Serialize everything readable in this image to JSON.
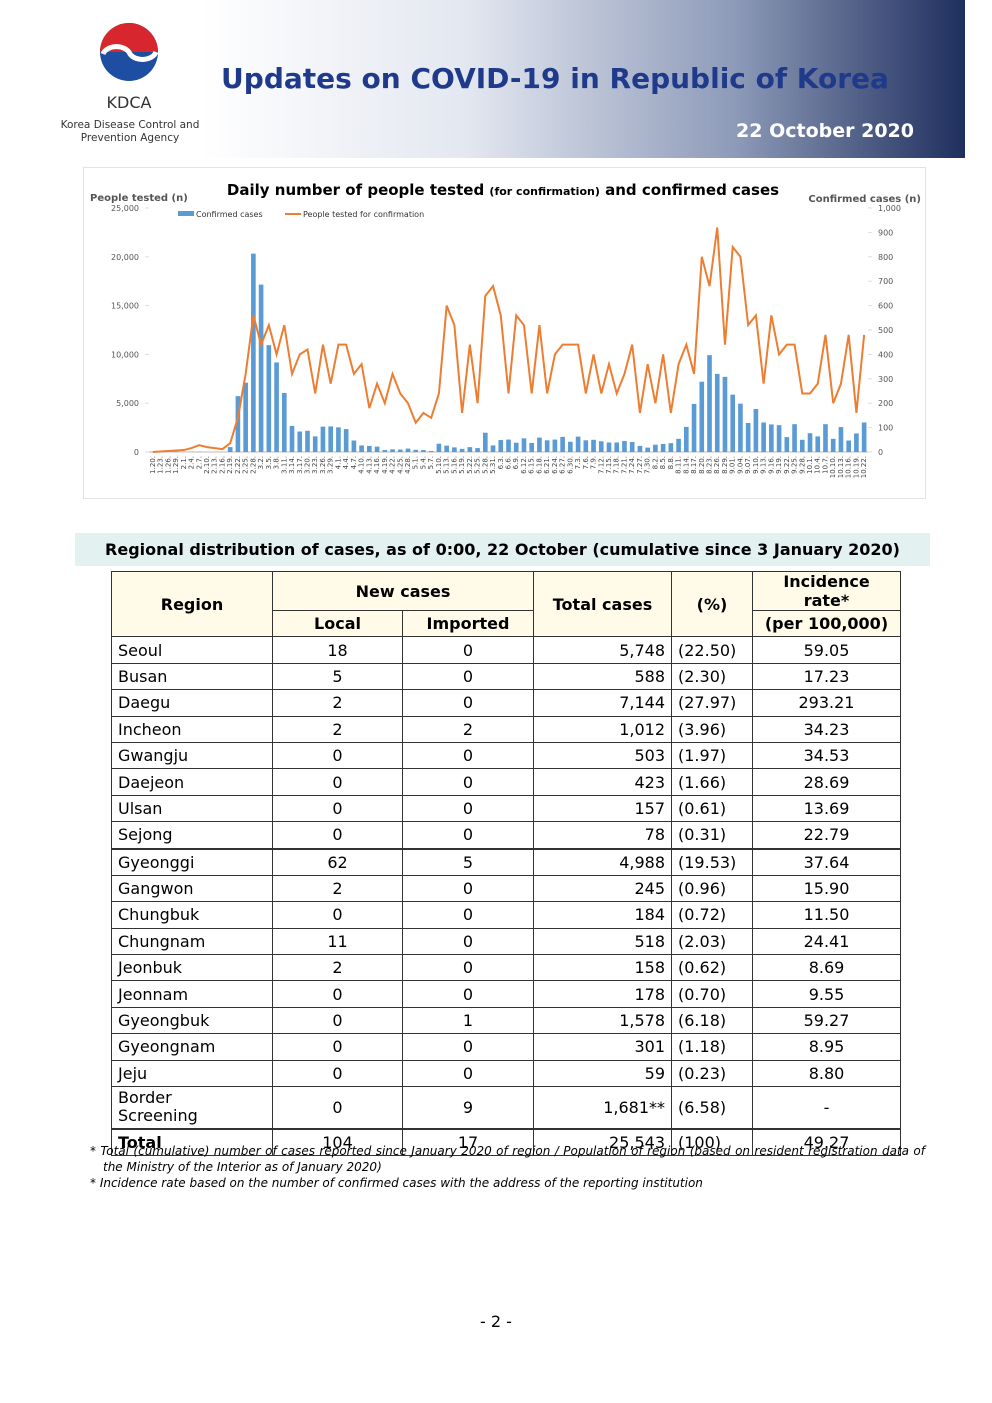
{
  "header": {
    "org": "KDCA",
    "org_full": [
      "Korea Disease Control and",
      "Prevention Agency"
    ],
    "title": "Updates on COVID-19 in Republic of Korea",
    "date": "22 October 2020"
  },
  "chart_data": {
    "type": "combo",
    "title": "Daily number of people tested",
    "title_small": "(for confirmation)",
    "title_end": "and confirmed cases",
    "y_label": "People tested (n)",
    "y2_label": "Confirmed cases (n)",
    "categories": [
      "1.20.",
      "1.23.",
      "1.26.",
      "1.29.",
      "2.1.",
      "2.4.",
      "2.7.",
      "2.10.",
      "2.13.",
      "2.16.",
      "2.19.",
      "2.22.",
      "2.25.",
      "2.28.",
      "3.2.",
      "3.5.",
      "3.8.",
      "3.11.",
      "3.14.",
      "3.17.",
      "3.20.",
      "3.23.",
      "3.26.",
      "3.29.",
      "4.1.",
      "4.4.",
      "4.7.",
      "4.10.",
      "4.13.",
      "4.16.",
      "4.19.",
      "4.22.",
      "4.25.",
      "4.28.",
      "5.1.",
      "5.4.",
      "5.7.",
      "5.10.",
      "5.13.",
      "5.16.",
      "5.19.",
      "5.22.",
      "5.25.",
      "5.28.",
      "5.31.",
      "6.3.",
      "6.6.",
      "6.9.",
      "6.12.",
      "6.15.",
      "6.18.",
      "6.21.",
      "6.24.",
      "6.27.",
      "6.30.",
      "7.3.",
      "7.6.",
      "7.9.",
      "7.12.",
      "7.15.",
      "7.18.",
      "7.21.",
      "7.24.",
      "7.27.",
      "7.30.",
      "8.2.",
      "8.5.",
      "8.8.",
      "8.11.",
      "8.14.",
      "8.17.",
      "8.20.",
      "8.23.",
      "8.26.",
      "8.29.",
      "9.01.",
      "9.04.",
      "9.07.",
      "9.10.",
      "9.13.",
      "9.16.",
      "9.19.",
      "9.22.",
      "9.25.",
      "9.28.",
      "10.1.",
      "10.4.",
      "10.7.",
      "10.10.",
      "10.13.",
      "10.16.",
      "10.19.",
      "10.22."
    ],
    "series": [
      {
        "name": "Confirmed cases",
        "kind": "bar",
        "axis": "y2",
        "color": "#5b9bd5",
        "values": [
          1,
          0,
          1,
          1,
          1,
          1,
          1,
          0,
          0,
          0,
          20,
          229,
          284,
          813,
          686,
          438,
          367,
          242,
          107,
          84,
          87,
          64,
          104,
          105,
          101,
          94,
          47,
          27,
          25,
          22,
          8,
          11,
          10,
          14,
          9,
          8,
          4,
          34,
          26,
          19,
          13,
          20,
          16,
          79,
          27,
          49,
          51,
          38,
          56,
          37,
          59,
          48,
          51,
          62,
          42,
          63,
          48,
          50,
          44,
          39,
          39,
          45,
          41,
          25,
          18,
          30,
          33,
          36,
          54,
          103,
          197,
          288,
          397,
          320,
          308,
          235,
          198,
          119,
          176,
          121,
          113,
          110,
          61,
          114,
          50,
          77,
          64,
          114,
          54,
          102,
          47,
          76,
          121
        ]
      },
      {
        "name": "People tested for confirmation",
        "kind": "line",
        "color": "#ed7d31",
        "values": [
          0,
          50,
          100,
          150,
          200,
          400,
          700,
          500,
          400,
          300,
          900,
          3500,
          8000,
          14000,
          11000,
          13000,
          10000,
          13000,
          8000,
          10000,
          10500,
          6000,
          11000,
          7000,
          11000,
          11000,
          8000,
          9000,
          4500,
          7000,
          5000,
          8000,
          6000,
          5000,
          3000,
          4000,
          3500,
          6000,
          15000,
          13000,
          4000,
          11000,
          5000,
          16000,
          17000,
          14000,
          6000,
          14000,
          13000,
          6000,
          13000,
          6000,
          10000,
          11000,
          11000,
          11000,
          6000,
          10000,
          6000,
          9000,
          6000,
          8000,
          11000,
          4000,
          9000,
          5000,
          10000,
          4000,
          9000,
          11000,
          8000,
          20000,
          17000,
          23000,
          11000,
          21000,
          20000,
          13000,
          14000,
          7000,
          14000,
          10000,
          11000,
          11000,
          6000,
          6000,
          7000,
          12000,
          5000,
          7000,
          12000,
          4000,
          12000
        ]
      }
    ],
    "ylim": [
      0,
      25000
    ],
    "yticks": [
      0,
      {
        "value": 5000,
        "label": "5,000"
      },
      {
        "value": 10000,
        "label": "10,000"
      },
      {
        "value": 15000,
        "label": "15,000"
      },
      {
        "value": 20000,
        "label": "20,000"
      },
      {
        "value": 25000,
        "label": "25,000"
      }
    ],
    "y2lim": [
      0,
      1000
    ],
    "y2ticks": [
      0,
      100,
      200,
      300,
      400,
      500,
      600,
      700,
      800,
      900,
      {
        "value": 1000,
        "label": "1,000"
      }
    ]
  },
  "table": {
    "caption": "Regional distribution of cases, as of 0:00, 22 October (cumulative since 3 January 2020)",
    "headers": {
      "region": "Region",
      "new_cases": "New cases",
      "local": "Local",
      "imported": "Imported",
      "total": "Total cases",
      "pct": "(%)",
      "rate": "Incidence rate*",
      "rate_unit": "(per 100,000)"
    },
    "rows": [
      [
        "Seoul",
        "18",
        "0",
        "5,748",
        "(22.50)",
        "59.05"
      ],
      [
        "Busan",
        "5",
        "0",
        "588",
        "(2.30)",
        "17.23"
      ],
      [
        "Daegu",
        "2",
        "0",
        "7,144",
        "(27.97)",
        "293.21"
      ],
      [
        "Incheon",
        "2",
        "2",
        "1,012",
        "(3.96)",
        "34.23"
      ],
      [
        "Gwangju",
        "0",
        "0",
        "503",
        "(1.97)",
        "34.53"
      ],
      [
        "Daejeon",
        "0",
        "0",
        "423",
        "(1.66)",
        "28.69"
      ],
      [
        "Ulsan",
        "0",
        "0",
        "157",
        "(0.61)",
        "13.69"
      ],
      [
        "Sejong",
        "0",
        "0",
        "78",
        "(0.31)",
        "22.79"
      ],
      [
        "Gyeonggi",
        "62",
        "5",
        "4,988",
        "(19.53)",
        "37.64"
      ],
      [
        "Gangwon",
        "2",
        "0",
        "245",
        "(0.96)",
        "15.90"
      ],
      [
        "Chungbuk",
        "0",
        "0",
        "184",
        "(0.72)",
        "11.50"
      ],
      [
        "Chungnam",
        "11",
        "0",
        "518",
        "(2.03)",
        "24.41"
      ],
      [
        "Jeonbuk",
        "2",
        "0",
        "158",
        "(0.62)",
        "8.69"
      ],
      [
        "Jeonnam",
        "0",
        "0",
        "178",
        "(0.70)",
        "9.55"
      ],
      [
        "Gyeongbuk",
        "0",
        "1",
        "1,578",
        "(6.18)",
        "59.27"
      ],
      [
        "Gyeongnam",
        "0",
        "0",
        "301",
        "(1.18)",
        "8.95"
      ],
      [
        "Jeju",
        "0",
        "0",
        "59",
        "(0.23)",
        "8.80"
      ],
      [
        "Border Screening",
        "0",
        "9",
        "1,681**",
        "(6.58)",
        "-"
      ],
      [
        "Total",
        "104",
        "17",
        "25,543",
        "(100)",
        "49.27"
      ]
    ]
  },
  "notes": [
    "* Total (cumulative) number of cases reported since January 2020 of region / Population of region (based on resident registration data of the Ministry of the Interior as of January 2020)",
    "* Incidence rate based on the number of confirmed cases with the address of the reporting institution"
  ],
  "page_number": "- 2 -"
}
